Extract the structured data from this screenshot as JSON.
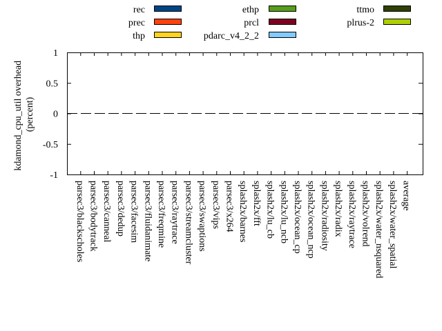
{
  "chart_data": {
    "type": "bar",
    "ylabel": "kdamond_cpu_util overhead\n(percent)",
    "ylim": [
      -1,
      1
    ],
    "yticks": [
      "1",
      "0.5",
      "0",
      "-0.5",
      "-1"
    ],
    "grid": false,
    "legend_position": "top",
    "categories": [
      "parsec3/blackscholes",
      "parsec3/bodytrack",
      "parsec3/canneal",
      "parsec3/dedup",
      "parsec3/facesim",
      "parsec3/fluidanimate",
      "parsec3/freqmine",
      "parsec3/raytrace",
      "parsec3/streamcluster",
      "parsec3/swaptions",
      "parsec3/vips",
      "parsec3/x264",
      "splash2x/barnes",
      "splash2x/fft",
      "splash2x/lu_cb",
      "splash2x/lu_ncb",
      "splash2x/ocean_cp",
      "splash2x/ocean_ncp",
      "splash2x/radiosity",
      "splash2x/radix",
      "splash2x/raytrace",
      "splash2x/volrend",
      "splash2x/water_nsquared",
      "splash2x/water_spatial",
      "average"
    ],
    "series": [
      {
        "name": "rec",
        "color": "#004586",
        "values": [
          0,
          0,
          0,
          0,
          0,
          0,
          0,
          0,
          0,
          0,
          0,
          0,
          0,
          0,
          0,
          0,
          0,
          0,
          0,
          0,
          0,
          0,
          0,
          0,
          0
        ]
      },
      {
        "name": "prec",
        "color": "#ff420e",
        "values": [
          0,
          0,
          0,
          0,
          0,
          0,
          0,
          0,
          0,
          0,
          0,
          0,
          0,
          0,
          0,
          0,
          0,
          0,
          0,
          0,
          0,
          0,
          0,
          0,
          0
        ]
      },
      {
        "name": "thp",
        "color": "#ffd320",
        "values": [
          0,
          0,
          0,
          0,
          0,
          0,
          0,
          0,
          0,
          0,
          0,
          0,
          0,
          0,
          0,
          0,
          0,
          0,
          0,
          0,
          0,
          0,
          0,
          0,
          0
        ]
      },
      {
        "name": "ethp",
        "color": "#579d1c",
        "values": [
          0,
          0,
          0,
          0,
          0,
          0,
          0,
          0,
          0,
          0,
          0,
          0,
          0,
          0,
          0,
          0,
          0,
          0,
          0,
          0,
          0,
          0,
          0,
          0,
          0
        ]
      },
      {
        "name": "prcl",
        "color": "#7e0021",
        "values": [
          0,
          0,
          0,
          0,
          0,
          0,
          0,
          0,
          0,
          0,
          0,
          0,
          0,
          0,
          0,
          0,
          0,
          0,
          0,
          0,
          0,
          0,
          0,
          0,
          0
        ]
      },
      {
        "name": "pdarc_v4_2_2",
        "color": "#83caff",
        "values": [
          0,
          0,
          0,
          0,
          0,
          0,
          0,
          0,
          0,
          0,
          0,
          0,
          0,
          0,
          0,
          0,
          0,
          0,
          0,
          0,
          0,
          0,
          0,
          0,
          0
        ]
      },
      {
        "name": "ttmo",
        "color": "#314004",
        "values": [
          0,
          0,
          0,
          0,
          0,
          0,
          0,
          0,
          0,
          0,
          0,
          0,
          0,
          0,
          0,
          0,
          0,
          0,
          0,
          0,
          0,
          0,
          0,
          0,
          0
        ]
      },
      {
        "name": "plrus-2",
        "color": "#aecf00",
        "values": [
          0,
          0,
          0,
          0,
          0,
          0,
          0,
          0,
          0,
          0,
          0,
          0,
          0,
          0,
          0,
          0,
          0,
          0,
          0,
          0,
          0,
          0,
          0,
          0,
          0
        ]
      }
    ]
  }
}
